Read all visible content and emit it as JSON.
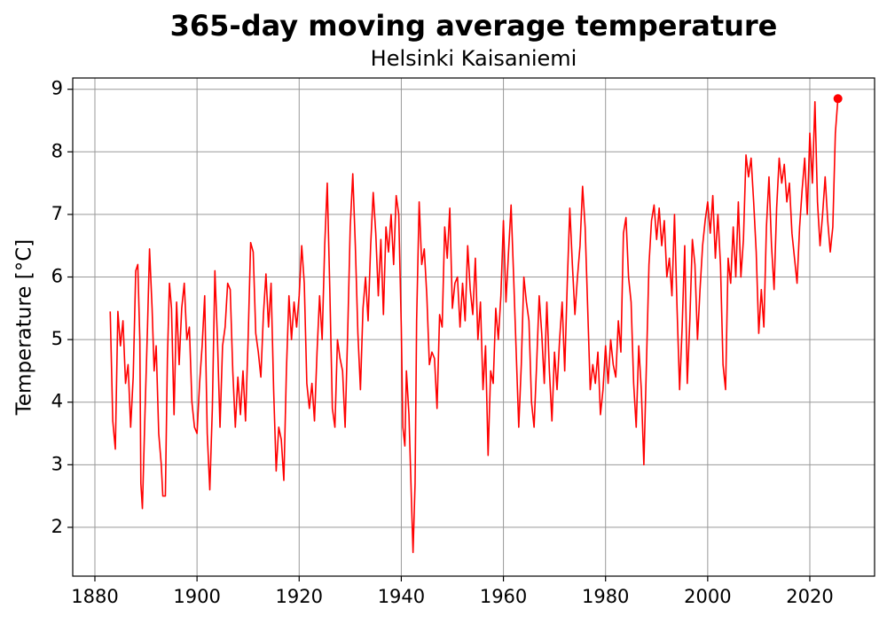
{
  "chart_data": {
    "type": "line",
    "title": "365-day moving average temperature",
    "subtitle": "Helsinki Kaisaniemi",
    "y_label": "Temperature [°C]",
    "xlim": [
      1875.66,
      2032.68
    ],
    "ylim": [
      1.22,
      9.18
    ],
    "xticks": [
      1880,
      1900,
      1920,
      1940,
      1960,
      1980,
      2000,
      2020
    ],
    "yticks": [
      2,
      3,
      4,
      5,
      6,
      7,
      8,
      9
    ],
    "grid": true,
    "end_marker": true,
    "series": [
      {
        "color": "#ff0000",
        "x": [
          1883.0,
          1883.5,
          1884.0,
          1884.5,
          1885.0,
          1885.5,
          1886.0,
          1886.5,
          1887.0,
          1887.5,
          1888.0,
          1888.4,
          1888.8,
          1889.0,
          1889.3,
          1889.8,
          1890.3,
          1890.7,
          1891.2,
          1891.6,
          1892.0,
          1892.5,
          1893.0,
          1893.3,
          1893.8,
          1894.2,
          1894.6,
          1895.0,
          1895.5,
          1896.0,
          1896.5,
          1897.0,
          1897.5,
          1898.0,
          1898.5,
          1899.0,
          1899.5,
          1900.0,
          1900.5,
          1901.0,
          1901.5,
          1902.0,
          1902.5,
          1903.0,
          1903.5,
          1904.0,
          1904.5,
          1905.0,
          1905.5,
          1906.0,
          1906.5,
          1907.0,
          1907.5,
          1908.0,
          1908.5,
          1909.0,
          1909.5,
          1910.0,
          1910.5,
          1911.0,
          1911.5,
          1912.0,
          1912.5,
          1913.0,
          1913.5,
          1914.0,
          1914.5,
          1915.0,
          1915.5,
          1916.0,
          1916.5,
          1917.0,
          1917.5,
          1918.0,
          1918.5,
          1919.0,
          1919.5,
          1920.0,
          1920.5,
          1921.0,
          1921.5,
          1922.0,
          1922.5,
          1923.0,
          1923.5,
          1924.0,
          1924.5,
          1925.0,
          1925.5,
          1926.0,
          1926.5,
          1927.0,
          1927.5,
          1928.0,
          1928.5,
          1929.0,
          1929.5,
          1930.0,
          1930.5,
          1931.0,
          1931.5,
          1932.0,
          1932.5,
          1933.0,
          1933.5,
          1934.0,
          1934.5,
          1935.0,
          1935.5,
          1936.0,
          1936.5,
          1937.0,
          1937.5,
          1938.0,
          1938.5,
          1939.0,
          1939.5,
          1940.0,
          1940.3,
          1940.7,
          1941.0,
          1941.5,
          1942.0,
          1942.3,
          1942.7,
          1943.0,
          1943.5,
          1944.0,
          1944.5,
          1945.0,
          1945.5,
          1946.0,
          1946.5,
          1947.0,
          1947.5,
          1948.0,
          1948.5,
          1949.0,
          1949.5,
          1950.0,
          1950.5,
          1951.0,
          1951.5,
          1952.0,
          1952.5,
          1953.0,
          1953.5,
          1954.0,
          1954.5,
          1955.0,
          1955.5,
          1956.0,
          1956.5,
          1957.0,
          1957.5,
          1958.0,
          1958.5,
          1959.0,
          1959.5,
          1960.0,
          1960.5,
          1961.0,
          1961.5,
          1962.0,
          1962.5,
          1963.0,
          1963.5,
          1964.0,
          1964.5,
          1965.0,
          1965.5,
          1966.0,
          1966.5,
          1967.0,
          1967.5,
          1968.0,
          1968.5,
          1969.0,
          1969.5,
          1970.0,
          1970.5,
          1971.0,
          1971.5,
          1972.0,
          1972.5,
          1973.0,
          1973.5,
          1974.0,
          1974.5,
          1975.0,
          1975.5,
          1976.0,
          1976.5,
          1977.0,
          1977.5,
          1978.0,
          1978.5,
          1979.0,
          1979.5,
          1980.0,
          1980.5,
          1981.0,
          1981.5,
          1982.0,
          1982.5,
          1983.0,
          1983.5,
          1984.0,
          1984.5,
          1985.0,
          1985.5,
          1986.0,
          1986.5,
          1987.0,
          1987.5,
          1988.0,
          1988.5,
          1989.0,
          1989.5,
          1990.0,
          1990.5,
          1991.0,
          1991.5,
          1992.0,
          1992.5,
          1993.0,
          1993.5,
          1994.0,
          1994.5,
          1995.0,
          1995.5,
          1996.0,
          1996.5,
          1997.0,
          1997.5,
          1998.0,
          1998.5,
          1999.0,
          1999.5,
          2000.0,
          2000.5,
          2001.0,
          2001.5,
          2002.0,
          2002.5,
          2003.0,
          2003.5,
          2004.0,
          2004.5,
          2005.0,
          2005.5,
          2006.0,
          2006.5,
          2007.0,
          2007.5,
          2008.0,
          2008.5,
          2009.0,
          2009.5,
          2010.0,
          2010.5,
          2011.0,
          2011.5,
          2012.0,
          2012.5,
          2013.0,
          2013.5,
          2014.0,
          2014.5,
          2015.0,
          2015.5,
          2016.0,
          2016.5,
          2017.0,
          2017.5,
          2018.0,
          2018.5,
          2019.0,
          2019.5,
          2020.0,
          2020.5,
          2021.0,
          2021.5,
          2022.0,
          2022.5,
          2023.0,
          2023.5,
          2024.0,
          2024.5,
          2025.0,
          2025.5
        ],
        "values": [
          5.45,
          3.7,
          3.25,
          5.45,
          4.9,
          5.3,
          4.3,
          4.6,
          3.6,
          4.4,
          6.1,
          6.2,
          5.0,
          2.7,
          2.3,
          3.8,
          5.2,
          6.45,
          5.5,
          4.5,
          4.9,
          3.5,
          3.0,
          2.5,
          2.5,
          4.7,
          5.9,
          5.5,
          3.8,
          5.6,
          4.6,
          5.5,
          5.9,
          5.0,
          5.2,
          4.0,
          3.6,
          3.5,
          4.3,
          4.9,
          5.7,
          3.5,
          2.6,
          3.9,
          6.1,
          5.0,
          3.6,
          4.9,
          5.2,
          5.9,
          5.8,
          4.5,
          3.6,
          4.4,
          3.8,
          4.5,
          3.7,
          5.0,
          6.55,
          6.4,
          5.1,
          4.8,
          4.4,
          5.4,
          6.05,
          5.2,
          5.9,
          4.2,
          2.9,
          3.6,
          3.4,
          2.75,
          4.5,
          5.7,
          5.0,
          5.6,
          5.2,
          5.7,
          6.5,
          5.9,
          4.3,
          3.9,
          4.3,
          3.7,
          4.8,
          5.7,
          5.0,
          6.5,
          7.5,
          5.8,
          3.9,
          3.6,
          5.0,
          4.7,
          4.5,
          3.6,
          5.1,
          6.8,
          7.65,
          6.5,
          5.1,
          4.2,
          5.5,
          6.0,
          5.3,
          6.5,
          7.35,
          6.7,
          5.7,
          6.6,
          5.4,
          6.8,
          6.4,
          7.0,
          6.2,
          7.3,
          7.0,
          5.2,
          3.6,
          3.3,
          4.5,
          3.8,
          2.4,
          1.6,
          2.7,
          5.3,
          7.2,
          6.2,
          6.45,
          5.7,
          4.6,
          4.8,
          4.7,
          3.9,
          5.4,
          5.2,
          6.8,
          6.3,
          7.1,
          5.5,
          5.9,
          6.0,
          5.2,
          5.9,
          5.3,
          6.5,
          5.8,
          5.4,
          6.3,
          5.0,
          5.6,
          4.2,
          4.9,
          3.15,
          4.5,
          4.3,
          5.5,
          5.0,
          5.7,
          6.9,
          5.6,
          6.4,
          7.15,
          6.0,
          4.8,
          3.6,
          4.6,
          6.0,
          5.6,
          5.3,
          4.0,
          3.6,
          4.6,
          5.7,
          5.1,
          4.3,
          5.6,
          4.5,
          3.7,
          4.8,
          4.2,
          5.0,
          5.6,
          4.5,
          5.9,
          7.1,
          6.2,
          5.4,
          6.0,
          6.5,
          7.45,
          6.8,
          5.5,
          4.2,
          4.6,
          4.3,
          4.8,
          3.8,
          4.2,
          4.9,
          4.3,
          5.0,
          4.6,
          4.4,
          5.3,
          4.8,
          6.7,
          6.95,
          6.0,
          5.6,
          4.3,
          3.6,
          4.9,
          4.2,
          3.0,
          4.6,
          6.2,
          6.9,
          7.15,
          6.6,
          7.1,
          6.5,
          6.9,
          6.0,
          6.3,
          5.7,
          7.0,
          5.5,
          4.2,
          5.2,
          6.5,
          4.3,
          5.3,
          6.6,
          6.2,
          5.0,
          5.8,
          6.5,
          6.9,
          7.2,
          6.7,
          7.3,
          6.3,
          7.0,
          6.2,
          4.6,
          4.2,
          6.3,
          5.9,
          6.8,
          6.0,
          7.2,
          6.0,
          6.6,
          7.95,
          7.6,
          7.9,
          7.2,
          6.4,
          5.1,
          5.8,
          5.2,
          6.8,
          7.6,
          6.5,
          5.8,
          7.1,
          7.9,
          7.5,
          7.8,
          7.2,
          7.5,
          6.7,
          6.3,
          5.9,
          6.8,
          7.4,
          7.9,
          7.0,
          8.3,
          7.5,
          8.8,
          7.2,
          6.5,
          7.0,
          7.6,
          6.9,
          6.4,
          6.8,
          8.3,
          8.85
        ]
      }
    ]
  }
}
